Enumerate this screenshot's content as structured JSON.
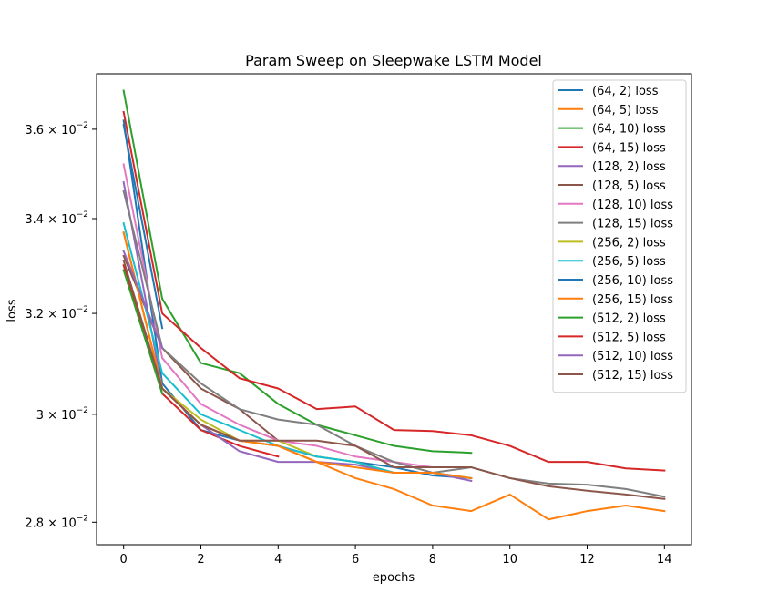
{
  "chart_data": {
    "type": "line",
    "title": "Param Sweep on Sleepwake LSTM Model",
    "xlabel": "epochs",
    "ylabel": "loss",
    "y_scale": "log",
    "xlim": [
      -0.7,
      14.7
    ],
    "ylim": [
      0.0276,
      0.0373
    ],
    "x_ticks": [
      0,
      2,
      4,
      6,
      8,
      10,
      12,
      14
    ],
    "x_tick_labels": [
      "0",
      "2",
      "4",
      "6",
      "8",
      "10",
      "12",
      "14"
    ],
    "y_ticks": [
      0.028,
      0.03,
      0.032,
      0.034,
      0.036
    ],
    "y_tick_labels": [
      {
        "mantissa": "2.8",
        "exp": "−2"
      },
      {
        "mantissa": "3",
        "exp": "−2"
      },
      {
        "mantissa": "3.2",
        "exp": "−2"
      },
      {
        "mantissa": "3.4",
        "exp": "−2"
      },
      {
        "mantissa": "3.6",
        "exp": "−2"
      }
    ],
    "y_tick_base": "× 10",
    "legend_position": "upper right",
    "series": [
      {
        "name": "(64, 2) loss",
        "color": "#1f77b4",
        "x": [
          0,
          1,
          2,
          3,
          4,
          5,
          6,
          7,
          8,
          9
        ],
        "y": [
          0.0362,
          0.0306,
          0.0297,
          0.0295,
          0.0294,
          0.0292,
          0.0291,
          0.029,
          0.02885,
          0.0288
        ]
      },
      {
        "name": "(64, 5) loss",
        "color": "#ff7f0e",
        "x": [
          0,
          1,
          2,
          3,
          4,
          5,
          6,
          7,
          8,
          9,
          10,
          11,
          12,
          13,
          14
        ],
        "y": [
          0.0337,
          0.0305,
          0.0298,
          0.0295,
          0.0294,
          0.0291,
          0.0288,
          0.0286,
          0.0283,
          0.0282,
          0.0285,
          0.02805,
          0.0282,
          0.0283,
          0.0282
        ]
      },
      {
        "name": "(64, 10) loss",
        "color": "#2ca02c",
        "x": [
          0,
          1,
          2,
          3,
          4,
          5,
          6,
          7,
          8,
          9
        ],
        "y": [
          0.0369,
          0.0323,
          0.031,
          0.0308,
          0.0302,
          0.0298,
          0.0296,
          0.0294,
          0.0293,
          0.02927
        ]
      },
      {
        "name": "(64, 15) loss",
        "color": "#d62728",
        "x": [
          0,
          1,
          2,
          3,
          4
        ],
        "y": [
          0.033,
          0.0304,
          0.0297,
          0.0294,
          0.0292
        ]
      },
      {
        "name": "(128, 2) loss",
        "color": "#9467bd",
        "x": [
          0,
          1,
          2,
          3,
          4,
          5,
          6,
          7,
          8,
          9
        ],
        "y": [
          0.0348,
          0.0305,
          0.0298,
          0.0293,
          0.0291,
          0.0291,
          0.02905,
          0.0289,
          0.0289,
          0.02875
        ]
      },
      {
        "name": "(128, 5) loss",
        "color": "#8c564b",
        "x": [
          0,
          1,
          2,
          3,
          4
        ],
        "y": [
          0.0332,
          0.0313,
          0.0305,
          0.0301,
          0.0295
        ]
      },
      {
        "name": "(128, 10) loss",
        "color": "#e377c2",
        "x": [
          0,
          1,
          2,
          3,
          4,
          5,
          6,
          7,
          8,
          9
        ],
        "y": [
          0.0352,
          0.0311,
          0.0302,
          0.0298,
          0.0295,
          0.0294,
          0.0292,
          0.0291,
          0.029,
          0.029
        ]
      },
      {
        "name": "(128, 15) loss",
        "color": "#7f7f7f",
        "x": [
          0,
          1,
          2,
          3,
          4,
          5,
          6,
          7,
          8,
          9,
          10,
          11,
          12,
          13,
          14
        ],
        "y": [
          0.0346,
          0.0313,
          0.0306,
          0.0301,
          0.0299,
          0.0298,
          0.0294,
          0.0291,
          0.0289,
          0.029,
          0.0288,
          0.0287,
          0.02868,
          0.0286,
          0.02846
        ]
      },
      {
        "name": "(256, 2) loss",
        "color": "#bcbd22",
        "x": [
          0,
          1,
          2,
          3,
          4,
          5,
          6,
          7,
          8,
          9
        ],
        "y": [
          0.0337,
          0.0305,
          0.0299,
          0.0295,
          0.0295,
          0.0292,
          0.0291,
          0.0289,
          0.0289,
          0.0288
        ]
      },
      {
        "name": "(256, 5) loss",
        "color": "#17becf",
        "x": [
          0,
          1,
          2,
          3,
          4,
          5,
          6,
          7,
          8,
          9
        ],
        "y": [
          0.0339,
          0.0308,
          0.03,
          0.0297,
          0.0294,
          0.0292,
          0.0291,
          0.0289,
          0.0289,
          0.0288
        ]
      },
      {
        "name": "(256, 10) loss",
        "color": "#1f77b4",
        "x": [
          0,
          1
        ],
        "y": [
          0.0361,
          0.0317
        ]
      },
      {
        "name": "(256, 15) loss",
        "color": "#ff7f0e",
        "x": [
          0,
          1,
          2,
          3,
          4,
          5,
          6,
          7,
          8,
          9
        ],
        "y": [
          0.0337,
          0.0305,
          0.0298,
          0.0295,
          0.0294,
          0.0291,
          0.029,
          0.0289,
          0.0289,
          0.0288
        ]
      },
      {
        "name": "(512, 2) loss",
        "color": "#2ca02c",
        "x": [
          0,
          1
        ],
        "y": [
          0.0329,
          0.0304
        ]
      },
      {
        "name": "(512, 5) loss",
        "color": "#d62728",
        "x": [
          0,
          1,
          2,
          3,
          4,
          5,
          6,
          7,
          8,
          9,
          10,
          11,
          12,
          13,
          14
        ],
        "y": [
          0.0364,
          0.032,
          0.0313,
          0.0307,
          0.0305,
          0.0301,
          0.03015,
          0.0297,
          0.02968,
          0.0296,
          0.0294,
          0.0291,
          0.0291,
          0.02898,
          0.02894
        ]
      },
      {
        "name": "(512, 10) loss",
        "color": "#9467bd",
        "x": [
          0,
          1
        ],
        "y": [
          0.0333,
          0.0313
        ]
      },
      {
        "name": "(512, 15) loss",
        "color": "#8c564b",
        "x": [
          0,
          1,
          2,
          3,
          4,
          5,
          6,
          7,
          8,
          9,
          10,
          11,
          12,
          13,
          14
        ],
        "y": [
          0.0331,
          0.0305,
          0.0298,
          0.0295,
          0.0295,
          0.0295,
          0.0294,
          0.029,
          0.029,
          0.029,
          0.0288,
          0.02865,
          0.02857,
          0.0285,
          0.02842
        ]
      }
    ]
  }
}
